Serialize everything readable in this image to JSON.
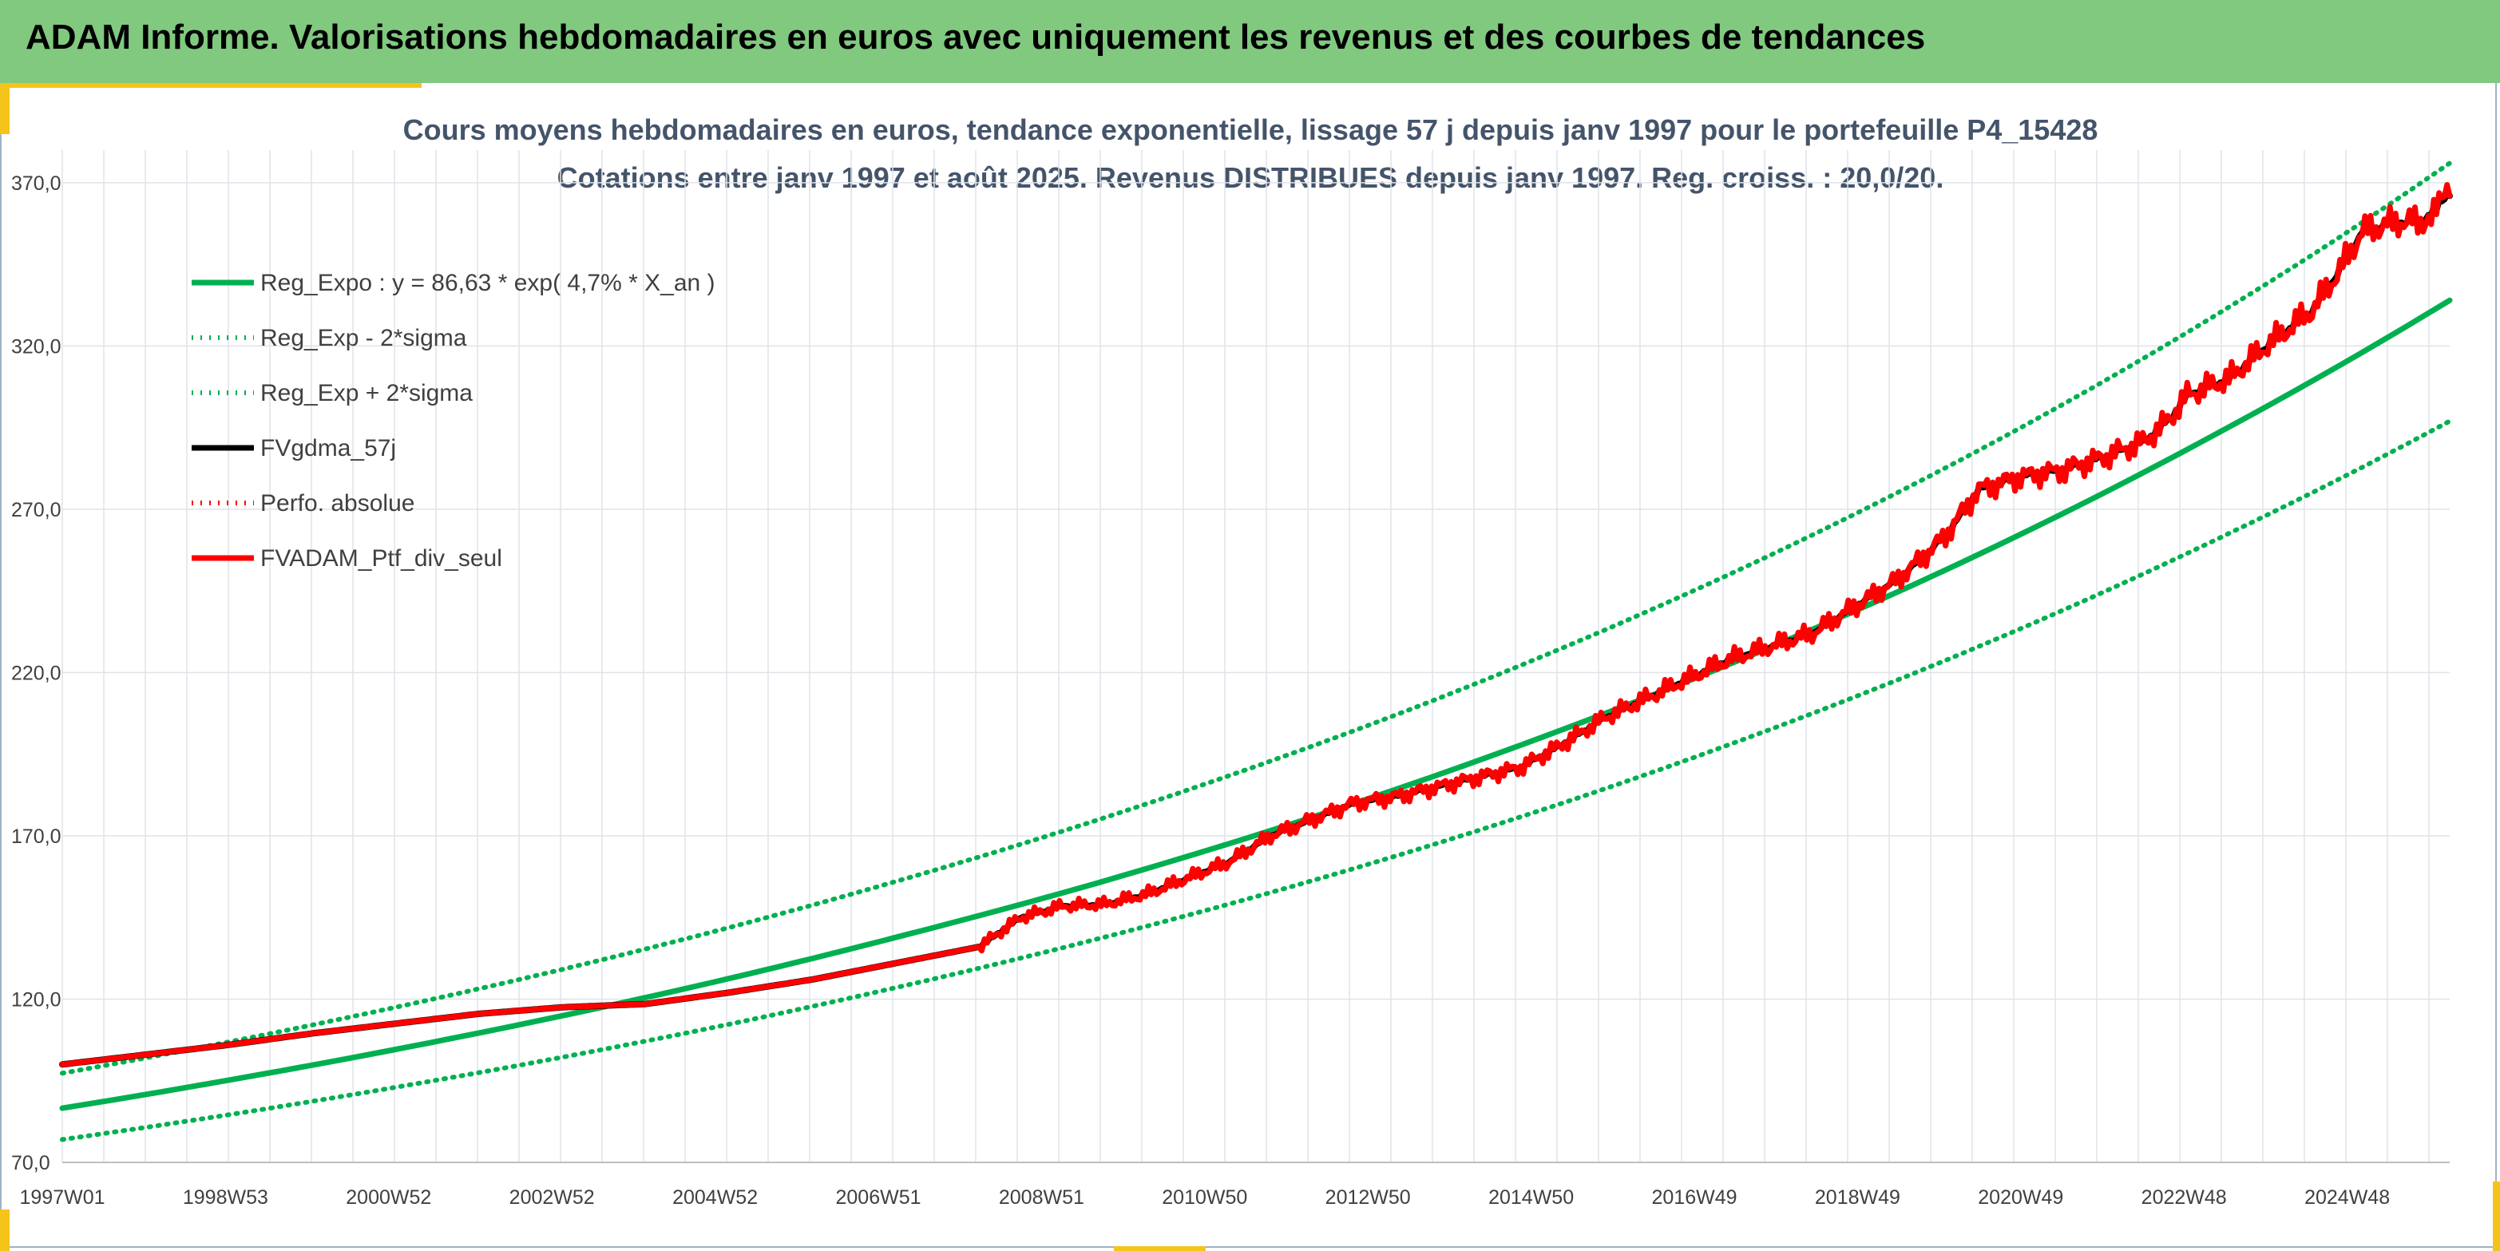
{
  "header": {
    "title": "ADAM Informe. Valorisations hebdomadaires en euros avec uniquement les revenus et des courbes de tendances"
  },
  "colors": {
    "banner": "#80c97f",
    "accent": "#f5c41a",
    "trend": "#00b050",
    "gdma": "#000000",
    "ptf": "#ff0000",
    "title": "#44546a"
  },
  "chart_data": {
    "type": "line",
    "title": "Cours moyens hebdomadaires en euros, tendance exponentielle, lissage 57 j depuis janv 1997 pour le portefeuille P4_15428",
    "subtitle": "Cotations entre janv 1997 et août 2025. Revenus DISTRIBUES depuis janv 1997. Reg. croiss. : 20,0/20.",
    "x_range": [
      1997.0,
      2025.65
    ],
    "ylim": [
      70,
      380
    ],
    "y_ticks": [
      "70,0",
      "120,0",
      "170,0",
      "220,0",
      "270,0",
      "320,0",
      "370,0"
    ],
    "x_tick_labels": [
      "1997W01",
      "1998W53",
      "2000W52",
      "2002W52",
      "2004W52",
      "2006W51",
      "2008W51",
      "2010W50",
      "2012W50",
      "2014W50",
      "2016W49",
      "2018W49",
      "2020W49",
      "2022W48",
      "2024W48"
    ],
    "grid": true,
    "legend_position": "top-left",
    "legend": [
      {
        "label": "Reg_Expo : y = 86,63 * exp( 4,7% *  X_an )",
        "color": "#00b050",
        "style": "solid"
      },
      {
        "label": "Reg_Exp - 2*sigma",
        "color": "#00b050",
        "style": "dotted"
      },
      {
        "label": "Reg_Exp + 2*sigma",
        "color": "#00b050",
        "style": "dotted"
      },
      {
        "label": "FVgdma_57j",
        "color": "#000000",
        "style": "solid"
      },
      {
        "label": "Perfo. absolue",
        "color": "#ff0000",
        "style": "dotted"
      },
      {
        "label": "FVADAM_Ptf_div_seul",
        "color": "#ff0000",
        "style": "solid"
      }
    ],
    "series": [
      {
        "name": "Reg_Expo : y = 86,63 * exp( 4,7% *  X_an )",
        "x": [
          1997.0,
          1999.0,
          2001.0,
          2003.0,
          2005.0,
          2007.0,
          2009.0,
          2011.0,
          2013.0,
          2015.0,
          2017.0,
          2019.0,
          2021.0,
          2023.0,
          2025.65
        ],
        "y": [
          86.6,
          95.2,
          104.6,
          114.9,
          126.3,
          138.9,
          152.5,
          167.6,
          184.2,
          202.5,
          222.5,
          244.4,
          268.6,
          295.2,
          334.0
        ]
      },
      {
        "name": "Reg_Exp - 2*sigma",
        "x": [
          1997.0,
          1999.0,
          2001.0,
          2003.0,
          2005.0,
          2007.0,
          2009.0,
          2011.0,
          2013.0,
          2015.0,
          2017.0,
          2019.0,
          2021.0,
          2023.0,
          2025.65
        ],
        "y": [
          77.0,
          84.6,
          93.0,
          102.2,
          112.3,
          123.5,
          135.7,
          149.1,
          163.8,
          180.0,
          197.9,
          217.5,
          239.0,
          262.6,
          297.0
        ]
      },
      {
        "name": "Reg_Exp + 2*sigma",
        "x": [
          1997.0,
          1999.0,
          2001.0,
          2003.0,
          2005.0,
          2007.0,
          2009.0,
          2011.0,
          2013.0,
          2015.0,
          2017.0,
          2019.0,
          2021.0,
          2023.0,
          2025.65
        ],
        "y": [
          97.3,
          106.9,
          117.5,
          129.1,
          141.9,
          156.0,
          171.4,
          188.4,
          207.0,
          227.5,
          250.0,
          274.8,
          302.0,
          331.9,
          376.0
        ]
      },
      {
        "name": "FVgdma_57j",
        "x": [
          1997.0,
          1998.0,
          1999.0,
          2000.0,
          2001.0,
          2002.0,
          2003.0,
          2004.0,
          2005.0,
          2006.0,
          2007.0,
          2008.0,
          2008.5,
          2009.0,
          2009.5,
          2010.0,
          2010.5,
          2011.0,
          2011.5,
          2012.0,
          2012.5,
          2013.0,
          2013.5,
          2014.0,
          2014.5,
          2015.0,
          2015.5,
          2016.0,
          2016.5,
          2017.0,
          2017.5,
          2018.0,
          2018.5,
          2019.0,
          2019.4,
          2019.6,
          2020.0,
          2020.5,
          2021.0,
          2021.5,
          2022.0,
          2022.3,
          2022.5,
          2023.0,
          2023.5,
          2024.0,
          2024.3,
          2024.6,
          2025.0,
          2025.3,
          2025.65
        ],
        "y": [
          100.0,
          103.0,
          106.0,
          109.5,
          112.5,
          115.5,
          117.5,
          118.5,
          122.0,
          126.0,
          131.0,
          136.0,
          145.0,
          148.5,
          149.0,
          152.0,
          157.0,
          162.0,
          170.0,
          175.0,
          180.0,
          182.0,
          185.0,
          188.0,
          191.0,
          198.0,
          206.0,
          212.0,
          218.0,
          224.0,
          228.0,
          232.0,
          240.0,
          248.0,
          257.0,
          262.0,
          276.0,
          280.0,
          282.0,
          286.0,
          291.0,
          298.0,
          305.0,
          310.0,
          321.0,
          331.0,
          342.0,
          355.0,
          358.0,
          358.0,
          366.0
        ]
      },
      {
        "name": "FVADAM_Ptf_div_seul",
        "x": [
          1997.0,
          1998.0,
          1999.0,
          2000.0,
          2001.0,
          2002.0,
          2003.0,
          2004.0,
          2005.0,
          2006.0,
          2007.0,
          2008.0,
          2008.5,
          2009.0,
          2009.5,
          2010.0,
          2010.5,
          2011.0,
          2011.5,
          2012.0,
          2012.5,
          2013.0,
          2013.5,
          2014.0,
          2014.5,
          2015.0,
          2015.5,
          2016.0,
          2016.5,
          2017.0,
          2017.5,
          2018.0,
          2018.5,
          2019.0,
          2019.4,
          2019.6,
          2020.0,
          2020.5,
          2021.0,
          2021.5,
          2022.0,
          2022.3,
          2022.5,
          2023.0,
          2023.5,
          2024.0,
          2024.3,
          2024.6,
          2025.0,
          2025.3,
          2025.65
        ],
        "y": [
          100.0,
          103.0,
          106.0,
          109.5,
          112.5,
          115.5,
          117.5,
          118.5,
          122.0,
          126.0,
          131.0,
          136.0,
          145.0,
          148.5,
          149.0,
          152.0,
          157.0,
          162.0,
          170.0,
          175.0,
          180.0,
          182.0,
          185.0,
          188.0,
          191.0,
          198.0,
          206.0,
          212.0,
          218.0,
          224.0,
          228.0,
          232.0,
          240.0,
          248.0,
          257.0,
          262.0,
          276.0,
          280.0,
          282.0,
          286.0,
          291.0,
          298.0,
          305.0,
          310.0,
          321.0,
          331.0,
          342.0,
          355.0,
          358.0,
          358.0,
          366.0
        ]
      }
    ]
  }
}
